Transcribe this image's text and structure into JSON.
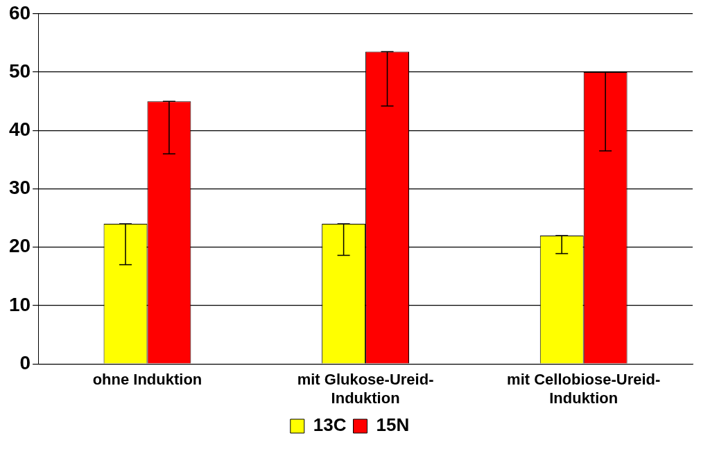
{
  "chart_data": {
    "type": "bar",
    "categories": [
      "ohne Induktion",
      "mit Glukose-Ureid-Induktion",
      "mit Cellobiose-Ureid-Induktion"
    ],
    "series": [
      {
        "name": "13C",
        "color": "#ffff00",
        "values": [
          24,
          24,
          22
        ],
        "errors": [
          [
            17,
            24
          ],
          [
            18.6,
            24
          ],
          [
            18.9,
            22
          ]
        ]
      },
      {
        "name": "15N",
        "color": "#ff0000",
        "values": [
          45,
          53.5,
          50
        ],
        "errors": [
          [
            36,
            45
          ],
          [
            44.2,
            53.5
          ],
          [
            36.5,
            50
          ]
        ]
      }
    ],
    "ylim": [
      0,
      60
    ],
    "yticks": [
      0,
      10,
      20,
      30,
      40,
      50,
      60
    ],
    "grid": "y",
    "legend": "bottom"
  }
}
